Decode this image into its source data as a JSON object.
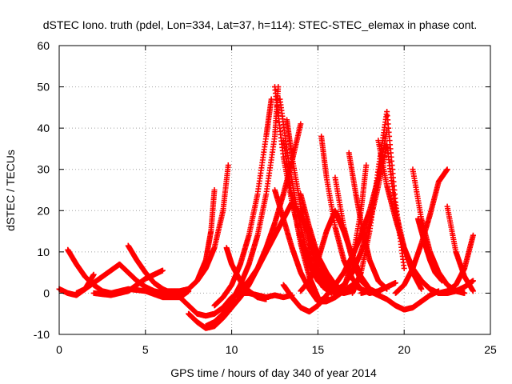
{
  "chart_data": {
    "type": "scatter",
    "title": "dSTEC Iono. truth (pdel, Lon=334, Lat=37, h=114): STEC-STEC_elemax in phase cont.",
    "xlabel": "GPS time / hours of day 340 of year 2014",
    "ylabel": "dSTEC  / TECUs",
    "xlim": [
      0,
      25
    ],
    "ylim": [
      -10,
      60
    ],
    "xticks": [
      0,
      5,
      10,
      15,
      20,
      25
    ],
    "yticks": [
      -10,
      0,
      10,
      20,
      30,
      40,
      50,
      60
    ],
    "grid": true,
    "legend": "none",
    "marker": "+",
    "color": "#ff0000",
    "series": [
      {
        "x": [
          0.0,
          0.5,
          1.0,
          1.5,
          2.0
        ],
        "y": [
          1.0,
          0.0,
          -0.5,
          1.0,
          4.5
        ]
      },
      {
        "x": [
          0.5,
          1.0,
          1.5,
          2.0,
          2.5,
          3.0
        ],
        "y": [
          10.5,
          7.0,
          4.0,
          2.0,
          0.5,
          0.0
        ]
      },
      {
        "x": [
          1.0,
          1.5,
          2.0,
          2.5,
          3.0,
          3.5,
          4.0,
          4.5,
          5.0,
          5.5,
          6.0
        ],
        "y": [
          0.0,
          1.0,
          2.5,
          4.0,
          5.5,
          7.0,
          5.0,
          3.0,
          1.5,
          0.5,
          0.0
        ]
      },
      {
        "x": [
          2.0,
          3.0,
          4.0,
          4.5,
          5.0,
          5.5,
          6.0
        ],
        "y": [
          0.0,
          -0.5,
          0.5,
          2.0,
          3.5,
          4.5,
          5.5
        ]
      },
      {
        "x": [
          4.0,
          4.5,
          5.0,
          5.5,
          6.0,
          6.5,
          7.0
        ],
        "y": [
          11.5,
          8.0,
          5.0,
          2.5,
          1.0,
          0.0,
          0.0
        ]
      },
      {
        "x": [
          3.0,
          4.0,
          5.0,
          6.0,
          7.0,
          7.5
        ],
        "y": [
          0.0,
          1.0,
          0.5,
          -1.0,
          -1.0,
          0.5
        ]
      },
      {
        "x": [
          6.5,
          7.0,
          7.5,
          8.0,
          8.5,
          9.0,
          9.5,
          9.8
        ],
        "y": [
          0.0,
          0.0,
          1.0,
          3.0,
          6.0,
          11.0,
          20.0,
          31.0
        ]
      },
      {
        "x": [
          6.0,
          7.0,
          7.5,
          8.0,
          8.5,
          8.8,
          9.0
        ],
        "y": [
          0.5,
          0.5,
          1.0,
          3.0,
          8.0,
          15.0,
          25.0
        ]
      },
      {
        "x": [
          6.0,
          7.0,
          7.5,
          8.0,
          8.5,
          9.0,
          9.5,
          10.0,
          10.5,
          11.0,
          11.5,
          12.0,
          12.5,
          13.0,
          13.5
        ],
        "y": [
          0.0,
          -1.0,
          -3.0,
          -5.0,
          -5.5,
          -5.0,
          -3.5,
          -1.0,
          0.0,
          0.0,
          -0.5,
          -1.0,
          -0.5,
          -1.0,
          -0.5
        ]
      },
      {
        "x": [
          7.5,
          8.0,
          8.5,
          9.0,
          9.5,
          10.0,
          10.5,
          11.0,
          11.5,
          12.0,
          12.5,
          13.0,
          13.5,
          14.0
        ],
        "y": [
          -5.0,
          -7.0,
          -8.5,
          -8.0,
          -6.0,
          -3.5,
          -1.0,
          2.0,
          6.0,
          11.0,
          17.0,
          24.0,
          32.0,
          41.0
        ]
      },
      {
        "x": [
          8.5,
          9.0,
          9.5,
          10.0,
          10.5,
          11.0,
          11.5,
          12.0,
          12.5,
          12.7
        ],
        "y": [
          -8.0,
          -7.0,
          -5.0,
          -2.0,
          2.0,
          7.0,
          14.0,
          24.0,
          38.0,
          50.0
        ]
      },
      {
        "x": [
          9.0,
          9.5,
          10.0,
          10.5,
          11.0,
          11.5,
          12.0,
          12.3
        ],
        "y": [
          -3.0,
          -1.0,
          2.0,
          7.0,
          14.0,
          24.0,
          38.0,
          47.0
        ]
      },
      {
        "x": [
          9.7,
          10.0,
          10.5,
          11.0,
          11.5,
          12.0
        ],
        "y": [
          11.0,
          7.0,
          3.0,
          0.5,
          -1.0,
          -1.5
        ]
      },
      {
        "x": [
          10.5,
          11.0,
          11.5,
          12.0,
          12.5,
          13.0,
          13.5,
          14.0,
          14.5,
          15.0,
          15.5,
          16.0,
          16.5
        ],
        "y": [
          1.0,
          3.0,
          6.0,
          10.0,
          14.0,
          18.0,
          22.0,
          19.0,
          14.0,
          9.0,
          5.0,
          2.0,
          0.5
        ]
      },
      {
        "x": [
          12.5,
          13.0,
          13.5,
          14.0,
          14.5,
          15.0,
          15.5,
          16.0
        ],
        "y": [
          50.0,
          33.0,
          22.0,
          13.0,
          7.0,
          3.0,
          1.0,
          0.0
        ]
      },
      {
        "x": [
          12.8,
          13.3,
          13.8,
          14.3,
          14.8,
          15.3,
          15.8
        ],
        "y": [
          47.0,
          32.0,
          20.0,
          11.0,
          5.0,
          1.5,
          0.0
        ]
      },
      {
        "x": [
          13.2,
          13.5,
          14.0,
          14.5,
          15.0,
          15.5,
          16.0,
          16.5,
          17.0
        ],
        "y": [
          42.0,
          33.0,
          21.0,
          12.0,
          6.0,
          2.0,
          0.5,
          0.0,
          0.5
        ]
      },
      {
        "x": [
          13.0,
          13.5,
          14.0,
          14.5,
          15.0
        ],
        "y": [
          37.0,
          23.0,
          12.0,
          4.0,
          -1.0
        ]
      },
      {
        "x": [
          12.5,
          13.0,
          13.5,
          14.0,
          14.5,
          15.0,
          15.5
        ],
        "y": [
          25.0,
          18.0,
          11.0,
          5.0,
          1.0,
          -2.0,
          -1.0
        ]
      },
      {
        "x": [
          13.0,
          13.5,
          14.0,
          14.5,
          15.0,
          15.5,
          16.0,
          16.5,
          17.0,
          17.5,
          18.0,
          18.5,
          19.0
        ],
        "y": [
          2.0,
          -1.0,
          -3.5,
          -4.5,
          -3.0,
          -0.5,
          2.0,
          5.0,
          9.0,
          14.0,
          20.0,
          28.0,
          39.5
        ]
      },
      {
        "x": [
          14.0,
          14.5,
          15.0,
          15.5,
          16.0,
          16.5,
          17.0,
          17.5,
          18.0
        ],
        "y": [
          0.5,
          3.0,
          8.0,
          15.0,
          20.0,
          15.0,
          9.0,
          4.0,
          1.0
        ]
      },
      {
        "x": [
          15.2,
          15.5,
          16.0,
          16.5,
          17.0,
          17.5,
          18.0
        ],
        "y": [
          38.0,
          28.0,
          16.0,
          8.0,
          3.5,
          1.0,
          0.0
        ]
      },
      {
        "x": [
          14.0,
          14.5,
          15.0,
          15.5,
          16.0,
          16.5
        ],
        "y": [
          24.0,
          16.0,
          9.0,
          4.0,
          1.0,
          0.0
        ]
      },
      {
        "x": [
          15.0,
          15.5,
          16.0,
          16.5,
          17.0,
          17.5,
          18.0,
          18.5,
          19.0,
          19.5
        ],
        "y": [
          -2.0,
          -2.0,
          -1.0,
          0.5,
          2.0,
          1.0,
          0.0,
          0.5,
          1.5,
          2.5
        ]
      },
      {
        "x": [
          16.0,
          16.5,
          17.0,
          17.5,
          18.0,
          18.5
        ],
        "y": [
          28.0,
          16.0,
          8.0,
          3.0,
          1.0,
          0.0
        ]
      },
      {
        "x": [
          16.8,
          17.2,
          17.6,
          18.0,
          18.5,
          19.0
        ],
        "y": [
          34.0,
          24.0,
          15.0,
          8.0,
          3.0,
          1.0
        ]
      },
      {
        "x": [
          16.5,
          17.0,
          17.5,
          17.8
        ],
        "y": [
          1.0,
          8.0,
          20.0,
          31.0
        ]
      },
      {
        "x": [
          16.0,
          16.5,
          17.0,
          17.5,
          18.0,
          18.5,
          19.0,
          19.5,
          20.0,
          20.5,
          21.0
        ],
        "y": [
          0.5,
          2.0,
          5.0,
          10.0,
          17.0,
          26.0,
          36.0,
          20.0,
          11.0,
          5.0,
          1.0
        ]
      },
      {
        "x": [
          17.0,
          17.5,
          18.0,
          18.5,
          19.0,
          19.5,
          20.0
        ],
        "y": [
          0.0,
          5.0,
          15.0,
          30.0,
          44.0,
          22.0,
          6.0
        ]
      },
      {
        "x": [
          18.5,
          19.0,
          19.5,
          20.0,
          20.5,
          21.0,
          21.5,
          22.0
        ],
        "y": [
          37.0,
          26.0,
          18.0,
          11.0,
          6.0,
          3.0,
          1.0,
          0.0
        ]
      },
      {
        "x": [
          17.5,
          18.0,
          18.5,
          19.0,
          19.5,
          20.0,
          20.5,
          21.0,
          21.5,
          22.0
        ],
        "y": [
          0.0,
          0.5,
          -0.5,
          -1.5,
          -3.0,
          -4.0,
          -3.5,
          -2.0,
          -0.5,
          0.5
        ]
      },
      {
        "x": [
          19.5,
          20.0,
          20.5,
          21.0,
          21.5,
          22.0,
          22.5
        ],
        "y": [
          0.0,
          2.0,
          6.0,
          12.0,
          19.0,
          27.0,
          30.0
        ]
      },
      {
        "x": [
          20.5,
          21.0,
          21.5,
          22.0,
          22.5,
          23.0,
          23.5
        ],
        "y": [
          30.0,
          18.0,
          10.0,
          5.0,
          2.0,
          0.5,
          0.0
        ]
      },
      {
        "x": [
          20.8,
          21.2,
          21.5,
          21.8,
          22.2
        ],
        "y": [
          18.0,
          12.0,
          8.0,
          5.0,
          3.0
        ]
      },
      {
        "x": [
          21.0,
          21.5,
          22.0,
          22.5,
          23.0,
          23.5,
          24.0
        ],
        "y": [
          3.0,
          1.0,
          0.0,
          0.0,
          0.5,
          1.5,
          3.0
        ]
      },
      {
        "x": [
          22.5,
          23.0,
          23.5,
          24.0
        ],
        "y": [
          21.0,
          10.0,
          4.0,
          0.5
        ]
      },
      {
        "x": [
          22.0,
          22.5,
          23.0,
          23.5,
          24.0
        ],
        "y": [
          0.0,
          0.5,
          2.0,
          6.0,
          14.0
        ]
      }
    ]
  }
}
